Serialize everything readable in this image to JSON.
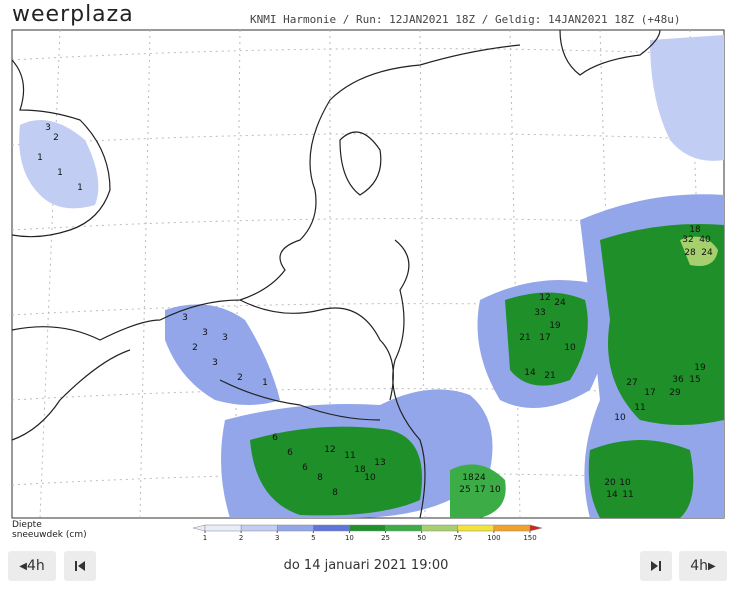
{
  "header": {
    "logo": "weerplaza",
    "info": "KNMI Harmonie / Run: 12JAN2021 18Z / Geldig: 14JAN2021 18Z (+48u)"
  },
  "legend": {
    "title_line1": "Diepte",
    "title_line2": "sneeuwdek (cm)",
    "ticks": [
      1,
      2,
      3,
      5,
      10,
      25,
      50,
      75,
      100,
      150
    ],
    "colors": [
      "#e8ecfb",
      "#c2cdf3",
      "#93a6ea",
      "#5f74dc",
      "#1f8f2a",
      "#3cad46",
      "#a6cf6e",
      "#f2e23a",
      "#f2a22a",
      "#d4231d"
    ]
  },
  "map_labels": [
    3,
    2,
    1,
    1,
    1,
    3,
    3,
    2,
    3,
    3,
    2,
    1,
    6,
    6,
    6,
    8,
    12,
    11,
    18,
    8,
    10,
    13,
    12,
    24,
    33,
    19,
    21,
    17,
    10,
    14,
    21,
    32,
    40,
    28,
    24,
    18,
    27,
    36,
    15,
    19,
    29,
    17,
    11,
    10,
    18,
    24,
    25,
    17,
    10,
    20,
    10,
    14,
    11
  ],
  "controls": {
    "back_step": "4h",
    "forward_step": "4h",
    "date": "do 14 januari 2021 19:00"
  }
}
